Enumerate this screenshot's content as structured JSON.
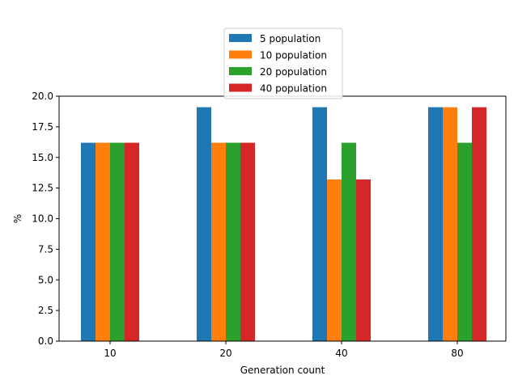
{
  "chart_data": {
    "type": "bar",
    "title": "",
    "xlabel": "Generation count",
    "ylabel": "%",
    "categories": [
      "10",
      "20",
      "40",
      "80"
    ],
    "ylim": [
      0,
      20
    ],
    "yticks": [
      "0.0",
      "2.5",
      "5.0",
      "7.5",
      "10.0",
      "12.5",
      "15.0",
      "17.5",
      "20.0"
    ],
    "legend_position": "top-center",
    "grid": false,
    "series": [
      {
        "name": "5 population",
        "color": "#1f77b4",
        "values": [
          16.2,
          19.1,
          19.1,
          19.1
        ]
      },
      {
        "name": "10 population",
        "color": "#ff7f0e",
        "values": [
          16.2,
          16.2,
          13.2,
          19.1
        ]
      },
      {
        "name": "20 population",
        "color": "#2ca02c",
        "values": [
          16.2,
          16.2,
          16.2,
          16.2
        ]
      },
      {
        "name": "40 population",
        "color": "#d62728",
        "values": [
          16.2,
          16.2,
          13.2,
          19.1
        ]
      }
    ]
  }
}
